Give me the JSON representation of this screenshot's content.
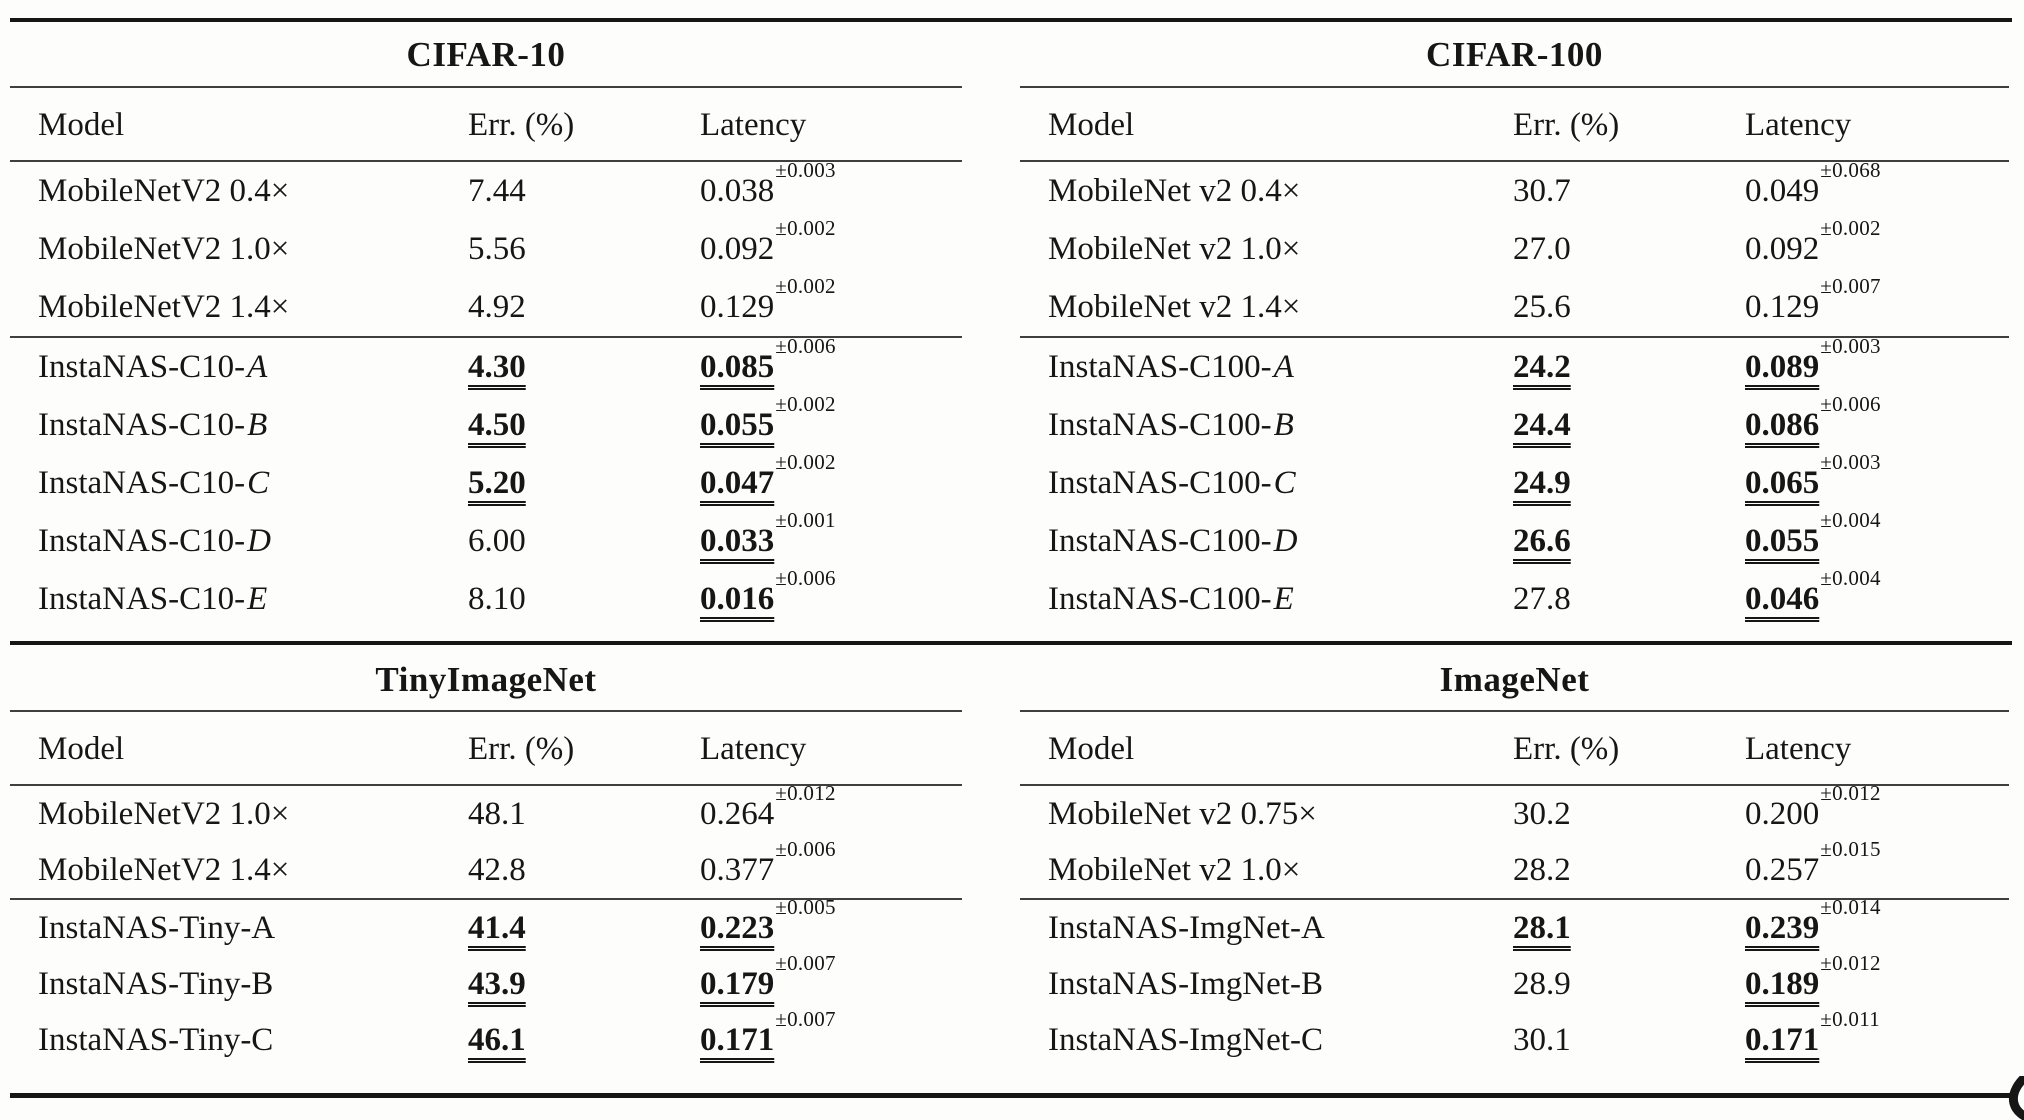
{
  "page": {
    "background": "#fdfdfc",
    "text_color": "#161616",
    "rule_color": "#161616"
  },
  "tables": [
    {
      "title": "CIFAR-10",
      "columns": [
        "Model",
        "Err. (%)",
        "Latency"
      ],
      "groups": [
        {
          "rows": [
            {
              "model": "MobileNetV2 0.4×",
              "model_it": "",
              "err": "7.44",
              "err_hl": false,
              "lat": "0.038",
              "pm": "±0.003",
              "lat_hl": false
            },
            {
              "model": "MobileNetV2 1.0×",
              "model_it": "",
              "err": "5.56",
              "err_hl": false,
              "lat": "0.092",
              "pm": "±0.002",
              "lat_hl": false
            },
            {
              "model": "MobileNetV2 1.4×",
              "model_it": "",
              "err": "4.92",
              "err_hl": false,
              "lat": "0.129",
              "pm": "±0.002",
              "lat_hl": false
            }
          ]
        },
        {
          "rows": [
            {
              "model": "InstaNAS-C10-",
              "model_it": "A",
              "err": "4.30",
              "err_hl": true,
              "lat": "0.085",
              "pm": "±0.006",
              "lat_hl": true
            },
            {
              "model": "InstaNAS-C10-",
              "model_it": "B",
              "err": "4.50",
              "err_hl": true,
              "lat": "0.055",
              "pm": "±0.002",
              "lat_hl": true
            },
            {
              "model": "InstaNAS-C10-",
              "model_it": "C",
              "err": "5.20",
              "err_hl": true,
              "lat": "0.047",
              "pm": "±0.002",
              "lat_hl": true
            },
            {
              "model": "InstaNAS-C10-",
              "model_it": "D",
              "err": "6.00",
              "err_hl": false,
              "lat": "0.033",
              "pm": "±0.001",
              "lat_hl": true
            },
            {
              "model": "InstaNAS-C10-",
              "model_it": "E",
              "err": "8.10",
              "err_hl": false,
              "lat": "0.016",
              "pm": "±0.006",
              "lat_hl": true
            }
          ]
        }
      ]
    },
    {
      "title": "CIFAR-100",
      "columns": [
        "Model",
        "Err. (%)",
        "Latency"
      ],
      "groups": [
        {
          "rows": [
            {
              "model": "MobileNet v2 0.4×",
              "model_it": "",
              "err": "30.7",
              "err_hl": false,
              "lat": "0.049",
              "pm": "±0.068",
              "lat_hl": false
            },
            {
              "model": "MobileNet v2 1.0×",
              "model_it": "",
              "err": "27.0",
              "err_hl": false,
              "lat": "0.092",
              "pm": "±0.002",
              "lat_hl": false
            },
            {
              "model": "MobileNet v2 1.4×",
              "model_it": "",
              "err": "25.6",
              "err_hl": false,
              "lat": "0.129",
              "pm": "±0.007",
              "lat_hl": false
            }
          ]
        },
        {
          "rows": [
            {
              "model": "InstaNAS-C100-",
              "model_it": "A",
              "err": "24.2",
              "err_hl": true,
              "lat": "0.089",
              "pm": "±0.003",
              "lat_hl": true
            },
            {
              "model": "InstaNAS-C100-",
              "model_it": "B",
              "err": "24.4",
              "err_hl": true,
              "lat": "0.086",
              "pm": "±0.006",
              "lat_hl": true
            },
            {
              "model": "InstaNAS-C100-",
              "model_it": "C",
              "err": "24.9",
              "err_hl": true,
              "lat": "0.065",
              "pm": "±0.003",
              "lat_hl": true
            },
            {
              "model": "InstaNAS-C100-",
              "model_it": "D",
              "err": "26.6",
              "err_hl": true,
              "lat": "0.055",
              "pm": "±0.004",
              "lat_hl": true
            },
            {
              "model": "InstaNAS-C100-",
              "model_it": "E",
              "err": "27.8",
              "err_hl": false,
              "lat": "0.046",
              "pm": "±0.004",
              "lat_hl": true
            }
          ]
        }
      ]
    },
    {
      "title": "TinyImageNet",
      "columns": [
        "Model",
        "Err. (%)",
        "Latency"
      ],
      "groups": [
        {
          "rows": [
            {
              "model": "MobileNetV2 1.0×",
              "model_it": "",
              "err": "48.1",
              "err_hl": false,
              "lat": "0.264",
              "pm": "±0.012",
              "lat_hl": false
            },
            {
              "model": "MobileNetV2 1.4×",
              "model_it": "",
              "err": "42.8",
              "err_hl": false,
              "lat": "0.377",
              "pm": "±0.006",
              "lat_hl": false
            }
          ]
        },
        {
          "rows": [
            {
              "model": "InstaNAS-Tiny-A",
              "model_it": "",
              "err": "41.4",
              "err_hl": true,
              "lat": "0.223",
              "pm": "±0.005",
              "lat_hl": true
            },
            {
              "model": "InstaNAS-Tiny-B",
              "model_it": "",
              "err": "43.9",
              "err_hl": true,
              "lat": "0.179",
              "pm": "±0.007",
              "lat_hl": true
            },
            {
              "model": "InstaNAS-Tiny-C",
              "model_it": "",
              "err": "46.1",
              "err_hl": true,
              "lat": "0.171",
              "pm": "±0.007",
              "lat_hl": true
            }
          ]
        }
      ]
    },
    {
      "title": "ImageNet",
      "columns": [
        "Model",
        "Err. (%)",
        "Latency"
      ],
      "groups": [
        {
          "rows": [
            {
              "model": "MobileNet v2 0.75×",
              "model_it": "",
              "err": "30.2",
              "err_hl": false,
              "lat": "0.200",
              "pm": "±0.012",
              "lat_hl": false
            },
            {
              "model": "MobileNet v2 1.0×",
              "model_it": "",
              "err": "28.2",
              "err_hl": false,
              "lat": "0.257",
              "pm": "±0.015",
              "lat_hl": false
            }
          ]
        },
        {
          "rows": [
            {
              "model": "InstaNAS-ImgNet-A",
              "model_it": "",
              "err": "28.1",
              "err_hl": true,
              "lat": "0.239",
              "pm": "±0.014",
              "lat_hl": true
            },
            {
              "model": "InstaNAS-ImgNet-B",
              "model_it": "",
              "err": "28.9",
              "err_hl": false,
              "lat": "0.189",
              "pm": "±0.012",
              "lat_hl": true
            },
            {
              "model": "InstaNAS-ImgNet-C",
              "model_it": "",
              "err": "30.1",
              "err_hl": false,
              "lat": "0.171",
              "pm": "±0.011",
              "lat_hl": true
            }
          ]
        }
      ]
    }
  ],
  "artifacts": {
    "bottom_right_glyph_fragment": true
  }
}
